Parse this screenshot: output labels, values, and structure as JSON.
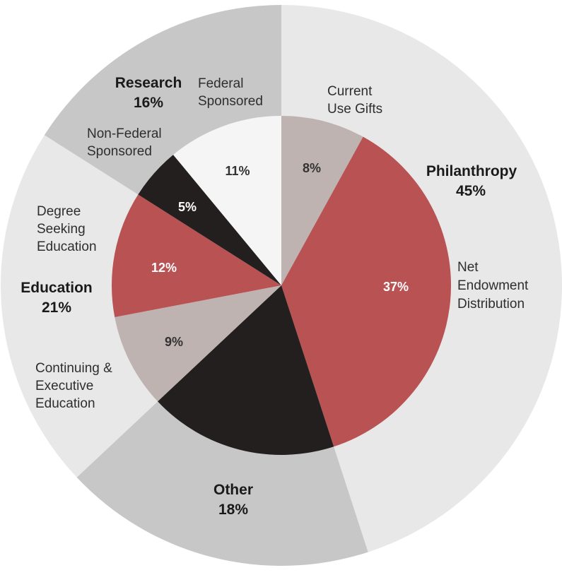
{
  "chart_data": {
    "type": "pie",
    "variant": "nested-donut",
    "title": "",
    "inner": [
      {
        "label": "Net Endowment Distribution",
        "label_lines": [
          "Net",
          "Endowment",
          "Distribution"
        ],
        "value": 37,
        "value_label": "37%",
        "color": "#b95252",
        "text_color": "#ffffff"
      },
      {
        "label": "Other",
        "label_lines": [],
        "value": 18,
        "value_label": "",
        "color": "#231f1f",
        "text_color": "#ffffff"
      },
      {
        "label": "Continuing & Executive Education",
        "label_lines": [
          "Continuing &",
          "Executive",
          "Education"
        ],
        "value": 9,
        "value_label": "9%",
        "color": "#bfb3b1",
        "text_color": "#333333"
      },
      {
        "label": "Degree Seeking Education",
        "label_lines": [
          "Degree",
          "Seeking",
          "Education"
        ],
        "value": 12,
        "value_label": "12%",
        "color": "#b95252",
        "text_color": "#ffffff"
      },
      {
        "label": "Non-Federal Sponsored",
        "label_lines": [
          "Non-Federal",
          "Sponsored"
        ],
        "value": 5,
        "value_label": "5%",
        "color": "#231f1f",
        "text_color": "#ffffff"
      },
      {
        "label": "Federal Sponsored",
        "label_lines": [
          "Federal",
          "Sponsored"
        ],
        "value": 11,
        "value_label": "11%",
        "color": "#f5f5f5",
        "text_color": "#333333"
      },
      {
        "label": "Current Use Gifts",
        "label_lines": [
          "Current",
          "Use Gifts"
        ],
        "value": 8,
        "value_label": "8%",
        "color": "#bfb3b1",
        "text_color": "#333333"
      }
    ],
    "outer": [
      {
        "name": "Philanthropy",
        "percent": "45%",
        "value": 45,
        "color": "#e8e8e8"
      },
      {
        "name": "Other",
        "percent": "18%",
        "value": 18,
        "color": "#c7c7c7"
      },
      {
        "name": "Education",
        "percent": "21%",
        "value": 21,
        "color": "#e8e8e8"
      },
      {
        "name": "Research",
        "percent": "16%",
        "value": 16,
        "color": "#c7c7c7"
      }
    ]
  }
}
